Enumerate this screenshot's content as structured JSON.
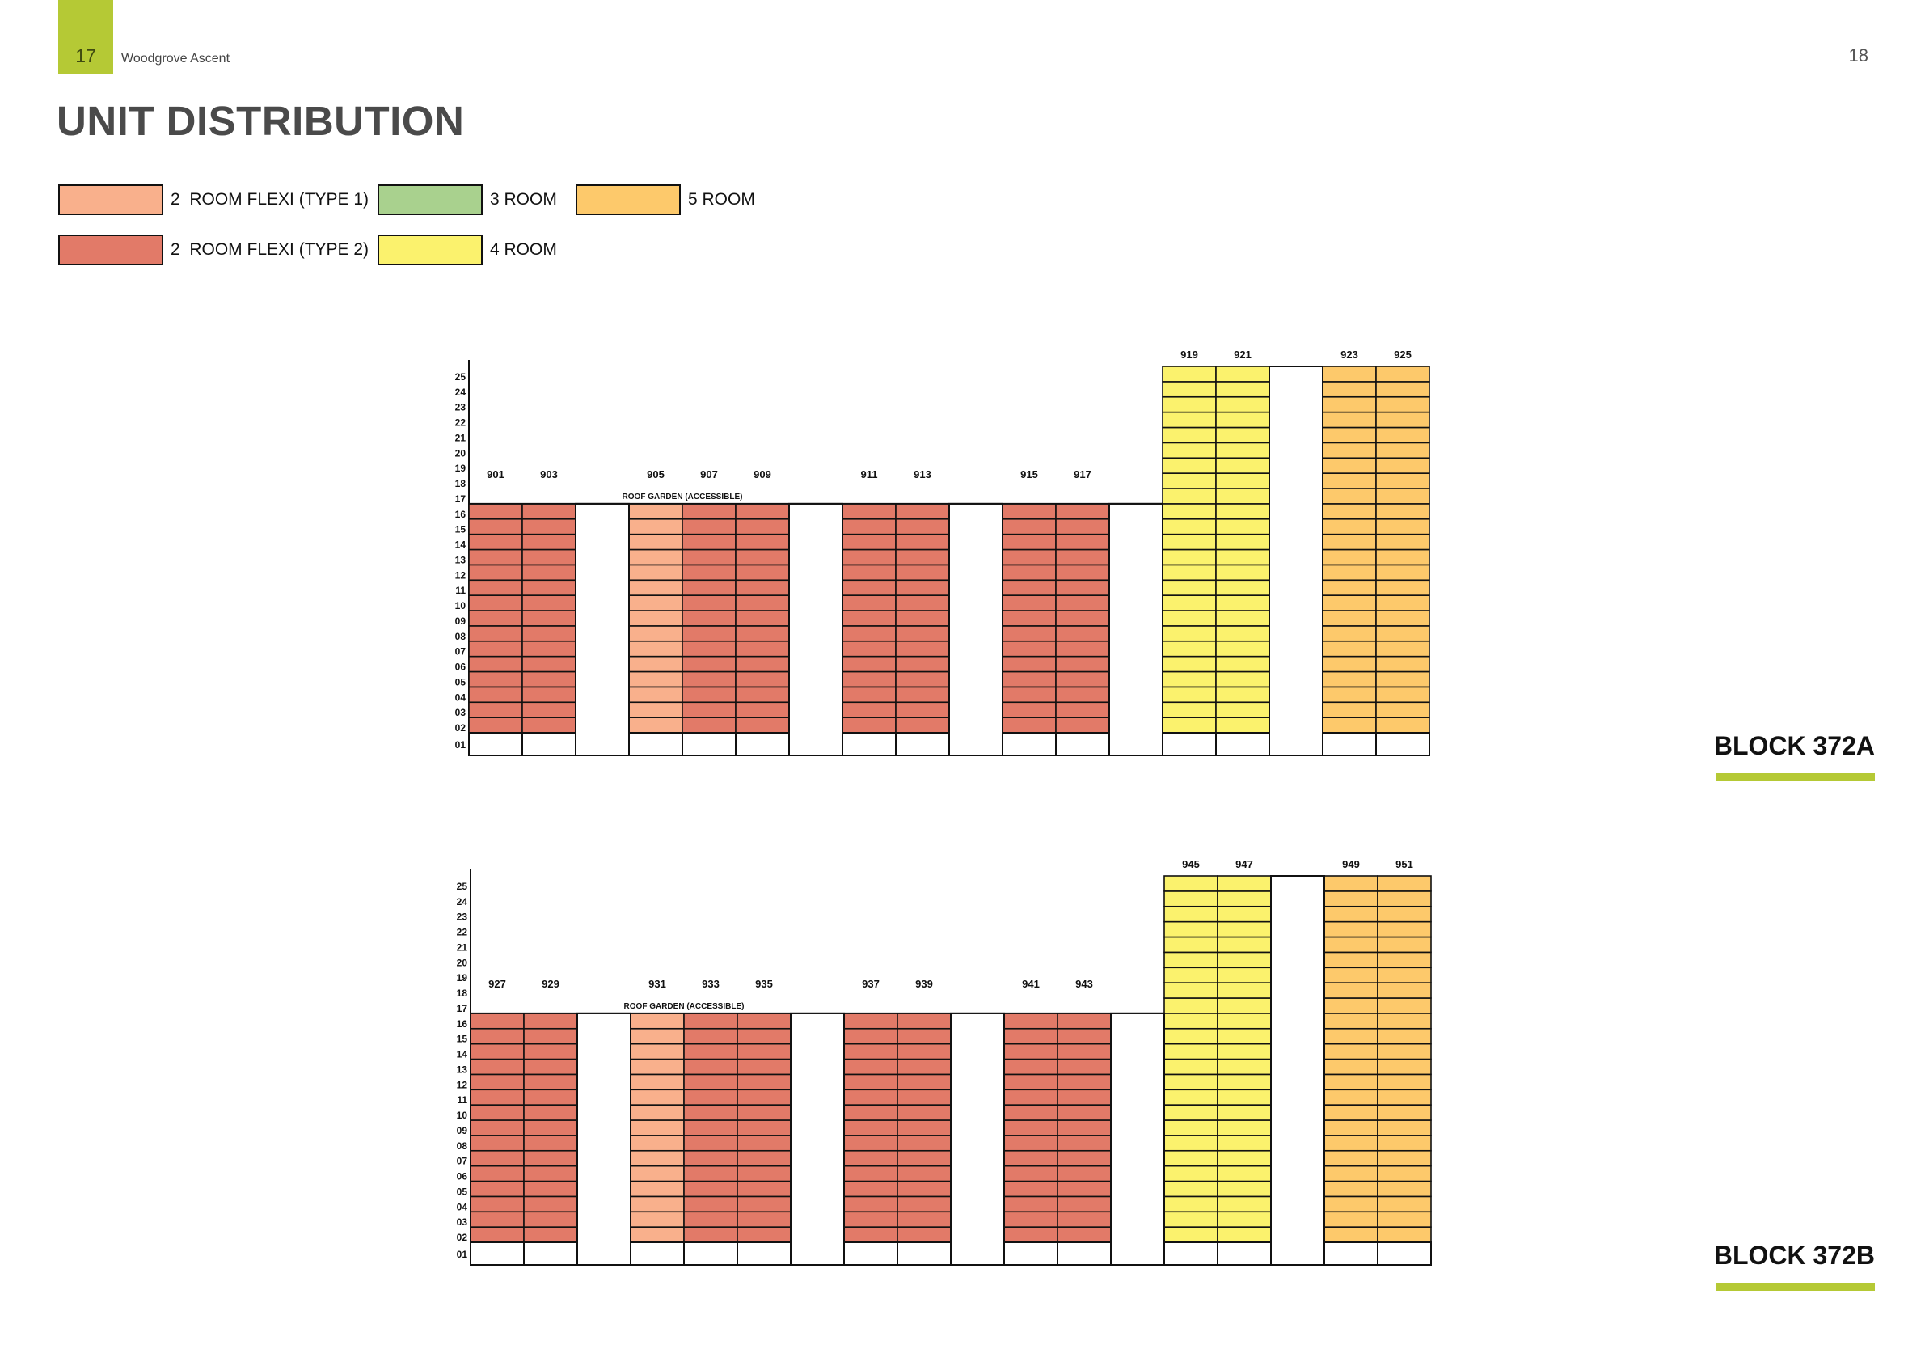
{
  "header": {
    "section_number": "17",
    "brand": "Woodgrove Ascent",
    "page_number": "18"
  },
  "title": "UNIT DISTRIBUTION",
  "legend": [
    {
      "label": "2  ROOM FLEXI (TYPE 1)",
      "color": "#f9b08c"
    },
    {
      "label": "2  ROOM FLEXI (TYPE 2)",
      "color": "#e27a68"
    },
    {
      "label": "3 ROOM",
      "color": "#a9d18e"
    },
    {
      "label": "4 ROOM",
      "color": "#fbf26d"
    },
    {
      "label": "5 ROOM",
      "color": "#fdc96b"
    }
  ],
  "roof_garden_label": "ROOF GARDEN (ACCESSIBLE)",
  "floor_labels": [
    "25",
    "24",
    "23",
    "22",
    "21",
    "20",
    "19",
    "18",
    "17",
    "16",
    "15",
    "14",
    "13",
    "12",
    "11",
    "10",
    "09",
    "08",
    "07",
    "06",
    "05",
    "04",
    "03",
    "02",
    "01"
  ],
  "blocks": [
    {
      "name": "BLOCK 372A",
      "stacks": [
        {
          "unit": "901",
          "type": "2-room-flexi-type-2",
          "top_floor": 16
        },
        {
          "unit": "903",
          "type": "2-room-flexi-type-2",
          "top_floor": 16
        },
        {
          "unit": "905",
          "type": "2-room-flexi-type-1",
          "top_floor": 16
        },
        {
          "unit": "907",
          "type": "2-room-flexi-type-2",
          "top_floor": 16
        },
        {
          "unit": "909",
          "type": "2-room-flexi-type-2",
          "top_floor": 16
        },
        {
          "unit": "911",
          "type": "2-room-flexi-type-2",
          "top_floor": 16
        },
        {
          "unit": "913",
          "type": "2-room-flexi-type-2",
          "top_floor": 16
        },
        {
          "unit": "915",
          "type": "2-room-flexi-type-2",
          "top_floor": 16
        },
        {
          "unit": "917",
          "type": "2-room-flexi-type-2",
          "top_floor": 16
        },
        {
          "unit": "919",
          "type": "4-room",
          "top_floor": 25
        },
        {
          "unit": "921",
          "type": "4-room",
          "top_floor": 25
        },
        {
          "unit": "923",
          "type": "5-room",
          "top_floor": 25
        },
        {
          "unit": "925",
          "type": "5-room",
          "top_floor": 25
        }
      ]
    },
    {
      "name": "BLOCK 372B",
      "stacks": [
        {
          "unit": "927",
          "type": "2-room-flexi-type-2",
          "top_floor": 16
        },
        {
          "unit": "929",
          "type": "2-room-flexi-type-2",
          "top_floor": 16
        },
        {
          "unit": "931",
          "type": "2-room-flexi-type-1",
          "top_floor": 16
        },
        {
          "unit": "933",
          "type": "2-room-flexi-type-2",
          "top_floor": 16
        },
        {
          "unit": "935",
          "type": "2-room-flexi-type-2",
          "top_floor": 16
        },
        {
          "unit": "937",
          "type": "2-room-flexi-type-2",
          "top_floor": 16
        },
        {
          "unit": "939",
          "type": "2-room-flexi-type-2",
          "top_floor": 16
        },
        {
          "unit": "941",
          "type": "2-room-flexi-type-2",
          "top_floor": 16
        },
        {
          "unit": "943",
          "type": "2-room-flexi-type-2",
          "top_floor": 16
        },
        {
          "unit": "945",
          "type": "4-room",
          "top_floor": 25
        },
        {
          "unit": "947",
          "type": "4-room",
          "top_floor": 25
        },
        {
          "unit": "949",
          "type": "5-room",
          "top_floor": 25
        },
        {
          "unit": "951",
          "type": "5-room",
          "top_floor": 25
        }
      ]
    }
  ],
  "type_colors": {
    "2-room-flexi-type-1": "#f9b08c",
    "2-room-flexi-type-2": "#e27a68",
    "3-room": "#a9d18e",
    "4-room": "#fbf26d",
    "5-room": "#fdc96b"
  }
}
